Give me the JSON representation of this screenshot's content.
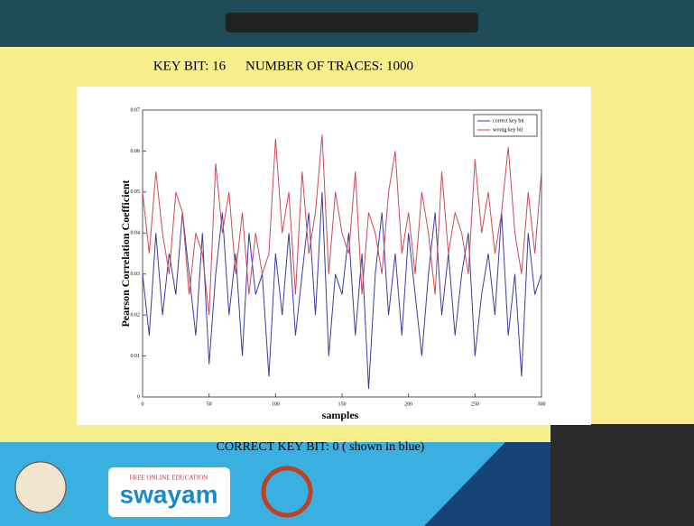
{
  "slide": {
    "key_bit": "KEY BIT: 16",
    "traces": "NUMBER OF TRACES: 1000",
    "footer": "CORRECT KEY BIT: 0 ( shown in blue)",
    "logo_tag": "FREE ONLINE EDUCATION",
    "logo": "swayam"
  },
  "chart_data": {
    "type": "line",
    "xlabel": "samples",
    "ylabel": "Pearson Correlation Coefficient",
    "x": [
      0,
      5,
      10,
      15,
      20,
      25,
      30,
      35,
      40,
      45,
      50,
      55,
      60,
      65,
      70,
      75,
      80,
      85,
      90,
      95,
      100,
      105,
      110,
      115,
      120,
      125,
      130,
      135,
      140,
      145,
      150,
      155,
      160,
      165,
      170,
      175,
      180,
      185,
      190,
      195,
      200,
      205,
      210,
      215,
      220,
      225,
      230,
      235,
      240,
      245,
      250,
      255,
      260,
      265,
      270,
      275,
      280,
      285,
      290,
      295,
      300
    ],
    "series": [
      {
        "name": "correct key bit",
        "color": "#3c3c9c",
        "values": [
          0.03,
          0.015,
          0.04,
          0.02,
          0.035,
          0.025,
          0.045,
          0.03,
          0.015,
          0.04,
          0.008,
          0.03,
          0.045,
          0.02,
          0.035,
          0.01,
          0.04,
          0.025,
          0.03,
          0.005,
          0.035,
          0.02,
          0.04,
          0.015,
          0.03,
          0.045,
          0.02,
          0.05,
          0.01,
          0.03,
          0.025,
          0.04,
          0.015,
          0.035,
          0.002,
          0.03,
          0.045,
          0.02,
          0.035,
          0.015,
          0.04,
          0.025,
          0.01,
          0.03,
          0.045,
          0.02,
          0.035,
          0.015,
          0.03,
          0.04,
          0.01,
          0.025,
          0.035,
          0.02,
          0.045,
          0.015,
          0.03,
          0.005,
          0.04,
          0.025,
          0.03
        ]
      },
      {
        "name": "wrong key bit",
        "color": "#c84a5a",
        "values": [
          0.05,
          0.035,
          0.055,
          0.04,
          0.03,
          0.05,
          0.045,
          0.025,
          0.04,
          0.035,
          0.02,
          0.057,
          0.04,
          0.05,
          0.03,
          0.045,
          0.025,
          0.04,
          0.03,
          0.035,
          0.063,
          0.04,
          0.05,
          0.025,
          0.055,
          0.035,
          0.045,
          0.064,
          0.03,
          0.05,
          0.04,
          0.035,
          0.055,
          0.025,
          0.045,
          0.04,
          0.03,
          0.05,
          0.06,
          0.035,
          0.045,
          0.03,
          0.05,
          0.04,
          0.025,
          0.055,
          0.035,
          0.045,
          0.04,
          0.03,
          0.058,
          0.04,
          0.05,
          0.035,
          0.045,
          0.061,
          0.04,
          0.03,
          0.05,
          0.035,
          0.055
        ]
      }
    ],
    "xlim": [
      0,
      300
    ],
    "xticks": [
      0,
      50,
      100,
      150,
      200,
      250,
      300
    ],
    "ylim": [
      0,
      0.07
    ],
    "yticks": [
      0,
      0.01,
      0.02,
      0.03,
      0.04,
      0.05,
      0.06,
      0.07
    ],
    "legend": "upper right"
  }
}
